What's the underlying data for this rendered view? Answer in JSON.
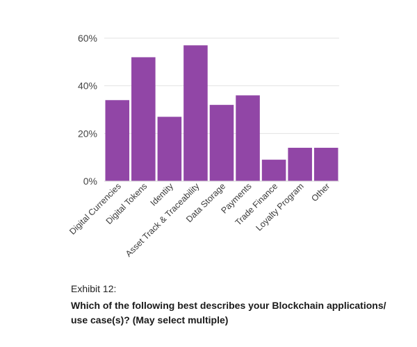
{
  "chart_data": {
    "type": "bar",
    "categories": [
      "Digital Currencies",
      "Digital Tokens",
      "Identity",
      "Asset Track & Traceability",
      "Data Storage",
      "Payments",
      "Trade Finance",
      "Loyalty Program",
      "Other"
    ],
    "values": [
      34,
      52,
      27,
      57,
      32,
      36,
      9,
      14,
      14
    ],
    "ylim": [
      0,
      60
    ],
    "yticks": [
      0,
      20,
      40,
      60
    ],
    "ytick_labels": [
      "0%",
      "20%",
      "40%",
      "60%"
    ],
    "grid": true,
    "bar_color": "#9146a6",
    "title": "",
    "xlabel": "",
    "ylabel": ""
  },
  "caption": {
    "exhibit": "Exhibit 12:",
    "question": "Which of the following best describes your Blockchain applications/ use case(s)? (May select multiple)"
  }
}
